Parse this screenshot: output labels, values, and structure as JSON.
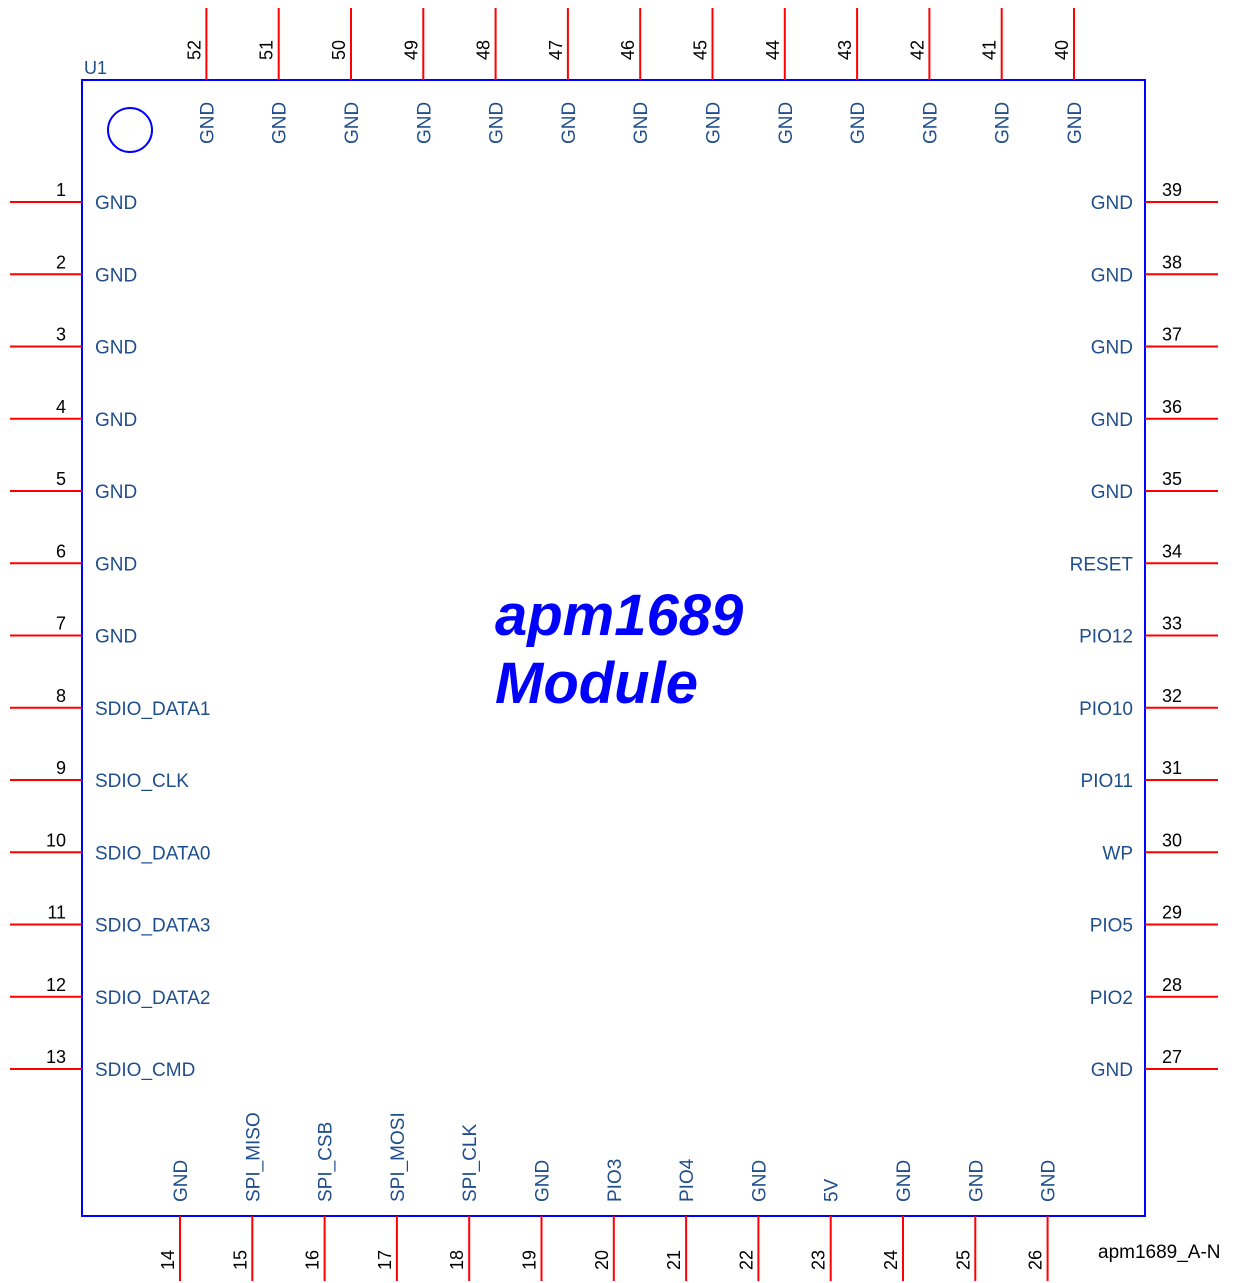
{
  "component": {
    "ref": "U1",
    "title_line1": "apm1689",
    "title_line2": "Module",
    "part_name": "apm1689_A-N",
    "body_color": "#0000ff",
    "pin_color": "#ff0000",
    "label_color": "#1f4e8c"
  },
  "pins": {
    "left": [
      {
        "num": "1",
        "name": "GND"
      },
      {
        "num": "2",
        "name": "GND"
      },
      {
        "num": "3",
        "name": "GND"
      },
      {
        "num": "4",
        "name": "GND"
      },
      {
        "num": "5",
        "name": "GND"
      },
      {
        "num": "6",
        "name": "GND"
      },
      {
        "num": "7",
        "name": "GND"
      },
      {
        "num": "8",
        "name": "SDIO_DATA1"
      },
      {
        "num": "9",
        "name": "SDIO_CLK"
      },
      {
        "num": "10",
        "name": "SDIO_DATA0"
      },
      {
        "num": "11",
        "name": "SDIO_DATA3"
      },
      {
        "num": "12",
        "name": "SDIO_DATA2"
      },
      {
        "num": "13",
        "name": "SDIO_CMD"
      }
    ],
    "bottom": [
      {
        "num": "14",
        "name": "GND"
      },
      {
        "num": "15",
        "name": "SPI_MISO"
      },
      {
        "num": "16",
        "name": "SPI_CSB"
      },
      {
        "num": "17",
        "name": "SPI_MOSI"
      },
      {
        "num": "18",
        "name": "SPI_CLK"
      },
      {
        "num": "19",
        "name": "GND"
      },
      {
        "num": "20",
        "name": "PIO3"
      },
      {
        "num": "21",
        "name": "PIO4"
      },
      {
        "num": "22",
        "name": "GND"
      },
      {
        "num": "23",
        "name": "5V"
      },
      {
        "num": "24",
        "name": "GND"
      },
      {
        "num": "25",
        "name": "GND"
      },
      {
        "num": "26",
        "name": "GND"
      }
    ],
    "right": [
      {
        "num": "27",
        "name": "GND"
      },
      {
        "num": "28",
        "name": "PIO2"
      },
      {
        "num": "29",
        "name": "PIO5"
      },
      {
        "num": "30",
        "name": "WP"
      },
      {
        "num": "31",
        "name": "PIO11"
      },
      {
        "num": "32",
        "name": "PIO10"
      },
      {
        "num": "33",
        "name": "PIO12"
      },
      {
        "num": "34",
        "name": "RESET"
      },
      {
        "num": "35",
        "name": "GND"
      },
      {
        "num": "36",
        "name": "GND"
      },
      {
        "num": "37",
        "name": "GND"
      },
      {
        "num": "38",
        "name": "GND"
      },
      {
        "num": "39",
        "name": "GND"
      }
    ],
    "top": [
      {
        "num": "40",
        "name": "GND"
      },
      {
        "num": "41",
        "name": "GND"
      },
      {
        "num": "42",
        "name": "GND"
      },
      {
        "num": "43",
        "name": "GND"
      },
      {
        "num": "44",
        "name": "GND"
      },
      {
        "num": "45",
        "name": "GND"
      },
      {
        "num": "46",
        "name": "GND"
      },
      {
        "num": "47",
        "name": "GND"
      },
      {
        "num": "48",
        "name": "GND"
      },
      {
        "num": "49",
        "name": "GND"
      },
      {
        "num": "50",
        "name": "GND"
      },
      {
        "num": "51",
        "name": "GND"
      },
      {
        "num": "52",
        "name": "GND"
      }
    ]
  }
}
